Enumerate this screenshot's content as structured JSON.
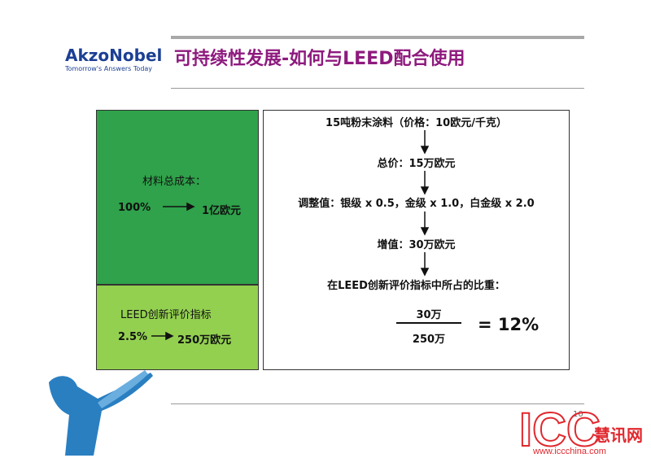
{
  "logo": {
    "name": "AkzoNobel",
    "tagline": "Tomorrow's Answers Today"
  },
  "title": "可持续性发展-如何与LEED配合使用",
  "left_top": {
    "label": "材料总成本：",
    "from": "100%",
    "to": "1亿欧元"
  },
  "left_bottom": {
    "label": "LEED创新评价指标",
    "from": "2.5%",
    "to": "250万欧元"
  },
  "steps": [
    "15吨粉末涂料（价格：10欧元/千克）",
    "总价：15万欧元",
    "调整值：银级 x 0.5，金级 x 1.0，白金级 x 2.0",
    "增值：30万欧元",
    "在LEED创新评价指标中所占的比重："
  ],
  "fraction": {
    "numerator": "30万",
    "denominator": "250万",
    "result": "= 12%"
  },
  "page_number": "10",
  "watermark": {
    "brand": "ICC",
    "brand_cn": "慧讯网",
    "url": "www.iccchina.com"
  }
}
